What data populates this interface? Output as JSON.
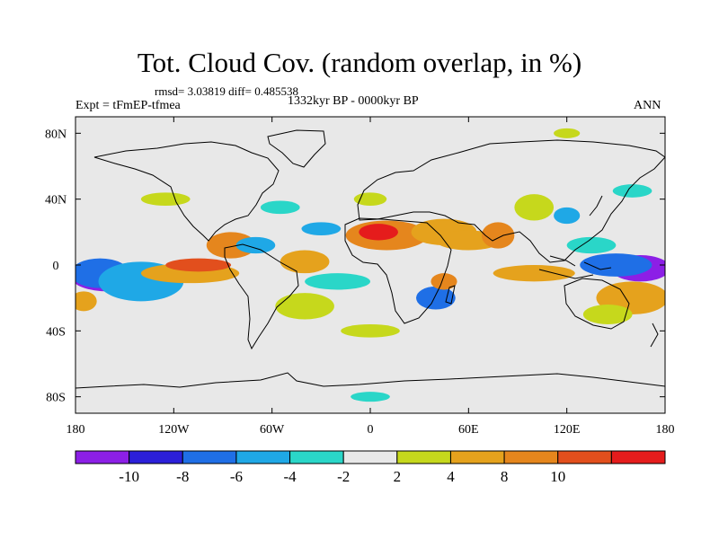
{
  "title": "Tot. Cloud Cov. (random overlap, in %)",
  "stats": "rmsd= 3.03819 diff= 0.485538",
  "experiment": "Expt = tFmEP-tfmea",
  "period": "1332kyr BP - 0000kyr BP",
  "season": "ANN",
  "chart_data": {
    "type": "heatmap",
    "projection": "cylindrical equidistant",
    "x_range": [
      -180,
      180
    ],
    "y_range": [
      -90,
      90
    ],
    "x_ticks": [
      {
        "value": -180,
        "label": "180"
      },
      {
        "value": -120,
        "label": "120W"
      },
      {
        "value": -60,
        "label": "60W"
      },
      {
        "value": 0,
        "label": "0"
      },
      {
        "value": 60,
        "label": "60E"
      },
      {
        "value": 120,
        "label": "120E"
      },
      {
        "value": 180,
        "label": "180"
      }
    ],
    "y_ticks": [
      {
        "value": 80,
        "label": "80N"
      },
      {
        "value": 40,
        "label": "40N"
      },
      {
        "value": 0,
        "label": "0"
      },
      {
        "value": -40,
        "label": "40S"
      },
      {
        "value": -80,
        "label": "80S"
      }
    ],
    "levels": [
      -12,
      -10,
      -8,
      -6,
      -4,
      -2,
      2,
      4,
      8,
      10,
      12
    ],
    "colorbar_labels": [
      "-10",
      "-8",
      "-6",
      "-4",
      "-2",
      "2",
      "4",
      "8",
      "10"
    ],
    "colors": [
      "#8c1fe6",
      "#2b1fd9",
      "#1f6fe6",
      "#1fa8e6",
      "#2ad6c8",
      "#e8e8e8",
      "#c6d81c",
      "#e5a21d",
      "#e5861d",
      "#e24f1d",
      "#e51c1c"
    ],
    "missing_color": "#e8e8e8",
    "anomaly_regions": [
      {
        "lon": -160,
        "lat": -8,
        "r": [
          22,
          8
        ],
        "level": 0
      },
      {
        "lon": -165,
        "lat": -5,
        "r": [
          18,
          9
        ],
        "level": 2
      },
      {
        "lon": -140,
        "lat": -10,
        "r": [
          26,
          12
        ],
        "level": 3
      },
      {
        "lon": -175,
        "lat": -22,
        "r": [
          8,
          6
        ],
        "level": 7
      },
      {
        "lon": -110,
        "lat": -5,
        "r": [
          30,
          6
        ],
        "level": 7
      },
      {
        "lon": -105,
        "lat": 0,
        "r": [
          20,
          4
        ],
        "level": 9
      },
      {
        "lon": -85,
        "lat": 12,
        "r": [
          15,
          8
        ],
        "level": 8
      },
      {
        "lon": -70,
        "lat": 12,
        "r": [
          12,
          5
        ],
        "level": 3
      },
      {
        "lon": -40,
        "lat": 2,
        "r": [
          15,
          7
        ],
        "level": 7
      },
      {
        "lon": -30,
        "lat": 22,
        "r": [
          12,
          4
        ],
        "level": 3
      },
      {
        "lon": -55,
        "lat": 35,
        "r": [
          12,
          4
        ],
        "level": 4
      },
      {
        "lon": 10,
        "lat": 18,
        "r": [
          25,
          9
        ],
        "level": 8
      },
      {
        "lon": 5,
        "lat": 20,
        "r": [
          12,
          5
        ],
        "level": 10
      },
      {
        "lon": 0,
        "lat": 40,
        "r": [
          10,
          4
        ],
        "level": 6
      },
      {
        "lon": 45,
        "lat": 20,
        "r": [
          20,
          8
        ],
        "level": 7
      },
      {
        "lon": 60,
        "lat": 15,
        "r": [
          20,
          6
        ],
        "level": 7
      },
      {
        "lon": 78,
        "lat": 18,
        "r": [
          10,
          8
        ],
        "level": 8
      },
      {
        "lon": 100,
        "lat": 35,
        "r": [
          12,
          8
        ],
        "level": 6
      },
      {
        "lon": 120,
        "lat": 30,
        "r": [
          8,
          5
        ],
        "level": 3
      },
      {
        "lon": 135,
        "lat": 12,
        "r": [
          15,
          5
        ],
        "level": 4
      },
      {
        "lon": 100,
        "lat": -5,
        "r": [
          25,
          5
        ],
        "level": 7
      },
      {
        "lon": 165,
        "lat": -2,
        "r": [
          18,
          8
        ],
        "level": 0
      },
      {
        "lon": 150,
        "lat": 0,
        "r": [
          22,
          7
        ],
        "level": 2
      },
      {
        "lon": 160,
        "lat": -20,
        "r": [
          22,
          10
        ],
        "level": 7
      },
      {
        "lon": 145,
        "lat": -30,
        "r": [
          15,
          6
        ],
        "level": 6
      },
      {
        "lon": 40,
        "lat": -20,
        "r": [
          12,
          7
        ],
        "level": 2
      },
      {
        "lon": 45,
        "lat": -10,
        "r": [
          8,
          5
        ],
        "level": 8
      },
      {
        "lon": -20,
        "lat": -10,
        "r": [
          20,
          5
        ],
        "level": 4
      },
      {
        "lon": -40,
        "lat": -25,
        "r": [
          18,
          8
        ],
        "level": 6
      },
      {
        "lon": 0,
        "lat": -40,
        "r": [
          18,
          4
        ],
        "level": 6
      },
      {
        "lon": -125,
        "lat": 40,
        "r": [
          15,
          4
        ],
        "level": 6
      },
      {
        "lon": 160,
        "lat": 45,
        "r": [
          12,
          4
        ],
        "level": 4
      },
      {
        "lon": 120,
        "lat": 80,
        "r": [
          8,
          3
        ],
        "level": 6
      },
      {
        "lon": 0,
        "lat": -80,
        "r": [
          12,
          3
        ],
        "level": 4
      }
    ]
  }
}
